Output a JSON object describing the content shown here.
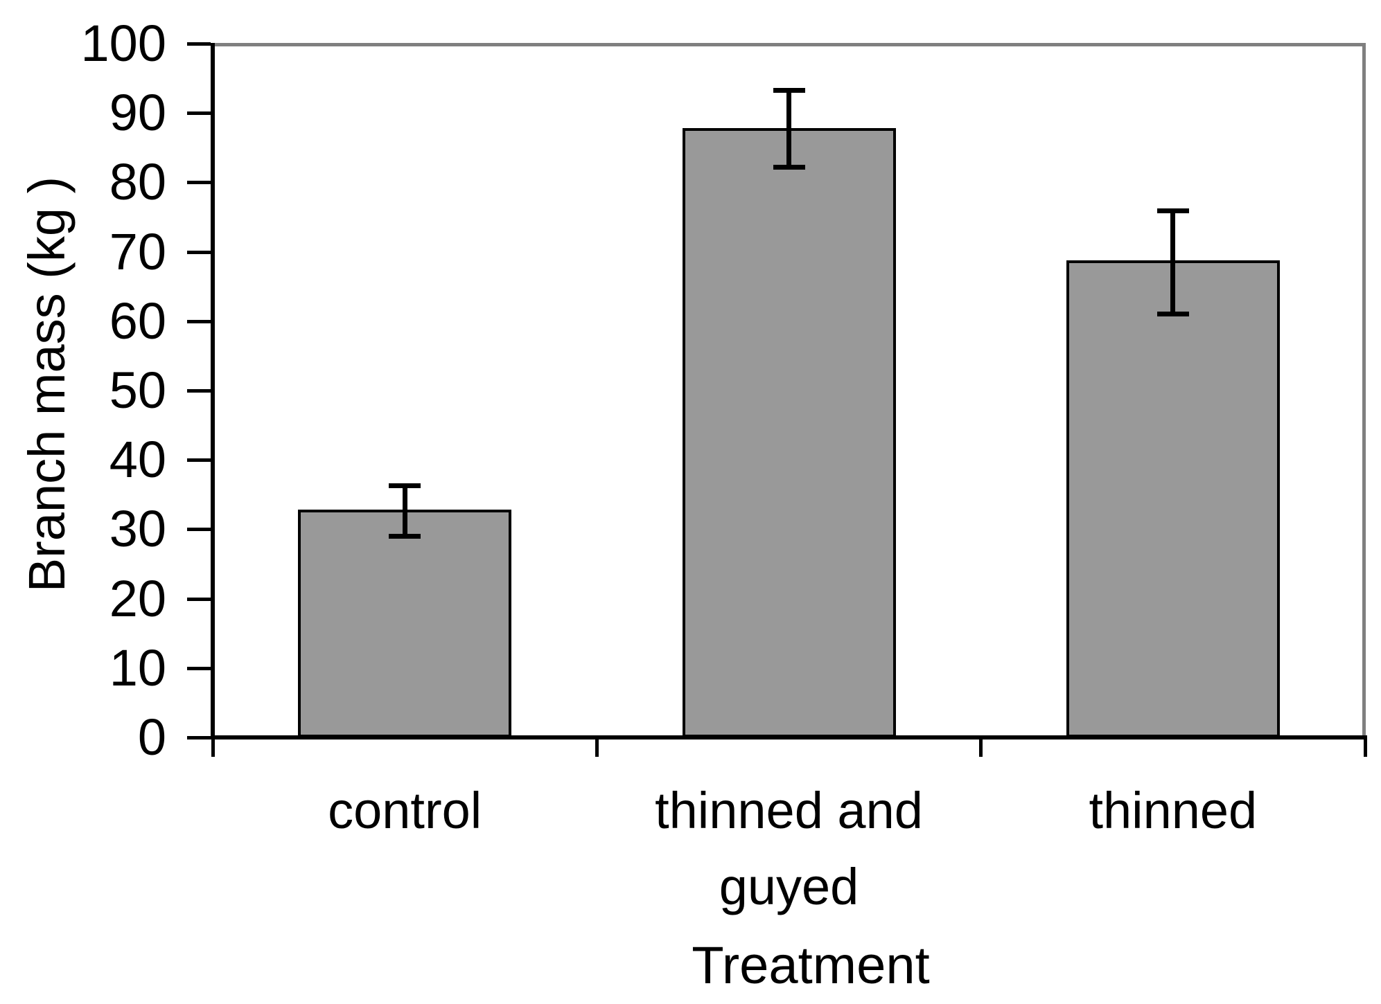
{
  "chart_data": {
    "type": "bar",
    "title": "",
    "xlabel": "Treatment",
    "ylabel": "Branch mass (kg )",
    "categories": [
      "control",
      "thinned and guyed",
      "thinned"
    ],
    "values": [
      32.8,
      87.8,
      68.8
    ],
    "errors": {
      "upper": [
        36.3,
        93.3,
        75.9
      ],
      "lower": [
        29.0,
        82.2,
        61.0
      ]
    },
    "ylim": [
      0,
      100
    ],
    "ytick_step": 10,
    "grid": false,
    "legend": false,
    "colors": {
      "bar_fill": "#999999",
      "bar_border": "#000000",
      "axis": "#000000",
      "frame": "#7f7f7f",
      "background": "#ffffff",
      "text": "#000000"
    }
  }
}
